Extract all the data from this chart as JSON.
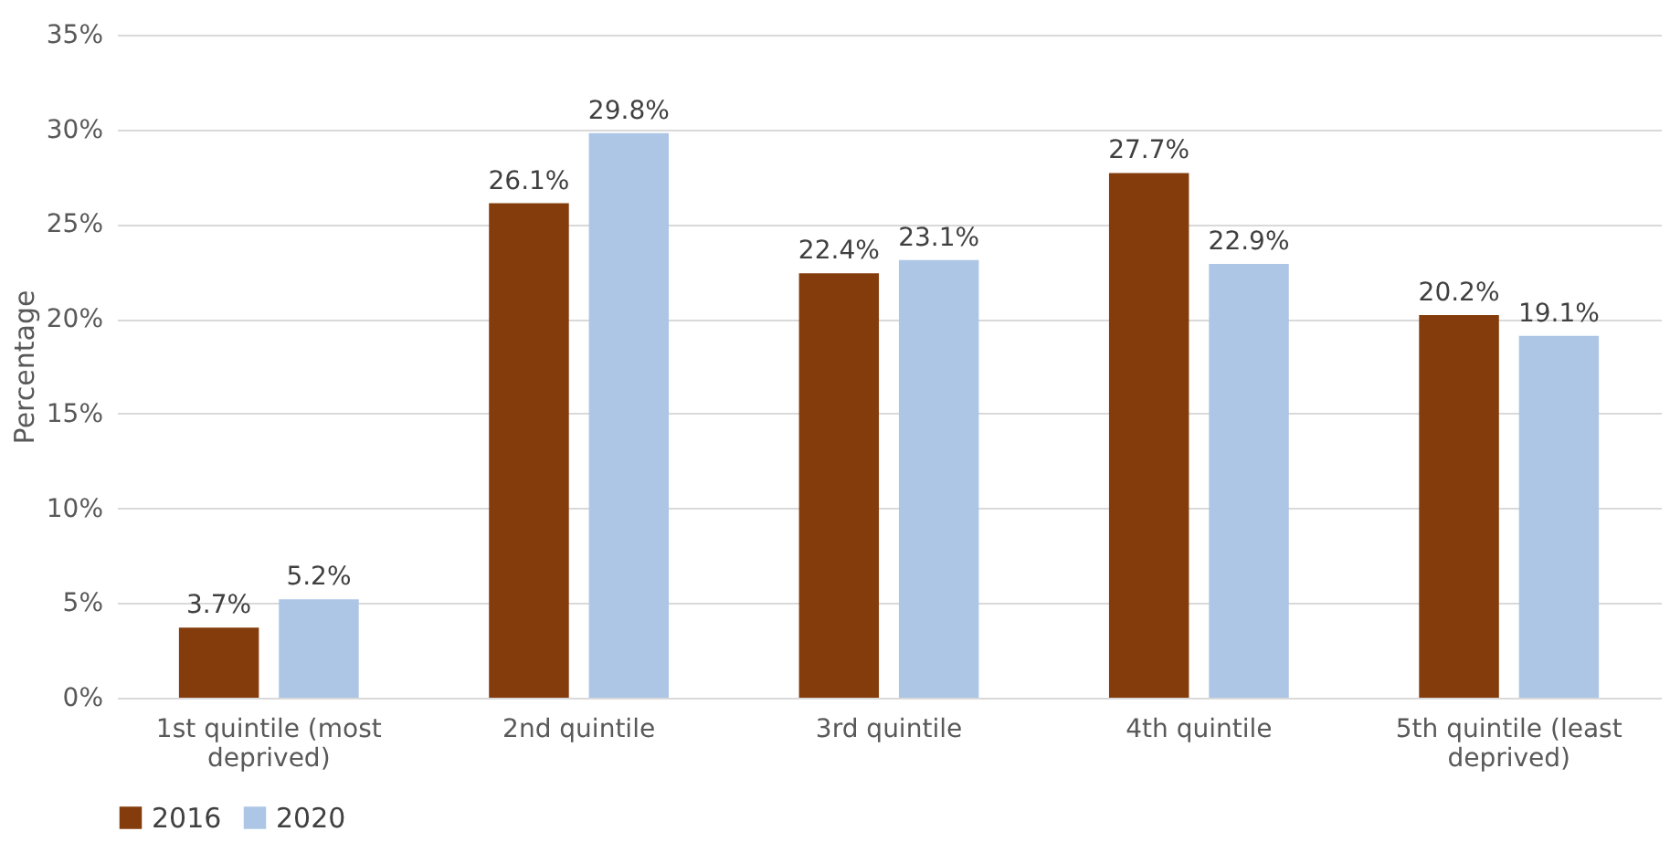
{
  "chart_data": {
    "type": "bar",
    "ylabel": "Percentage",
    "categories": [
      "1st quintile (most deprived)",
      "2nd quintile",
      "3rd quintile",
      "4th quintile",
      "5th quintile (least deprived)"
    ],
    "series": [
      {
        "name": "2016",
        "color": "#843c0c",
        "values": [
          3.7,
          26.1,
          22.4,
          27.7,
          20.2
        ],
        "value_labels": [
          "3.7%",
          "26.1%",
          "22.4%",
          "27.7%",
          "20.2%"
        ]
      },
      {
        "name": "2020",
        "color": "#adc6e6",
        "values": [
          5.2,
          29.8,
          23.1,
          22.9,
          19.1
        ],
        "value_labels": [
          "5.2%",
          "29.8%",
          "23.1%",
          "22.9%",
          "19.1%"
        ]
      }
    ],
    "ylim": [
      0,
      35
    ],
    "yticks": [
      {
        "value": 0,
        "label": "0%"
      },
      {
        "value": 5,
        "label": "5%"
      },
      {
        "value": 10,
        "label": "10%"
      },
      {
        "value": 15,
        "label": "15%"
      },
      {
        "value": 20,
        "label": "20%"
      },
      {
        "value": 25,
        "label": "25%"
      },
      {
        "value": 30,
        "label": "30%"
      },
      {
        "value": 35,
        "label": "35%"
      }
    ],
    "grid": "y",
    "legend": "bottom"
  }
}
